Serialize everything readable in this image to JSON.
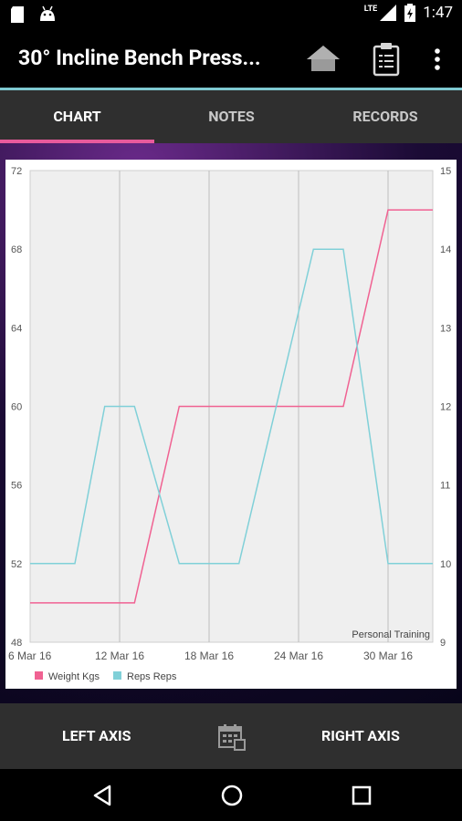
{
  "status_bar": {
    "time": "1:47",
    "network": "LTE",
    "icons": [
      "sd-card-icon",
      "android-icon",
      "signal-icon",
      "battery-icon"
    ]
  },
  "app_bar": {
    "title": "30° Incline Bench Press...",
    "icons": [
      "home-icon",
      "clipboard-icon",
      "more-vert-icon"
    ]
  },
  "tabs": [
    {
      "label": "CHART",
      "selected": true
    },
    {
      "label": "NOTES",
      "selected": false
    },
    {
      "label": "RECORDS",
      "selected": false
    }
  ],
  "colors": {
    "weight_series": "#f06292",
    "reps_series": "#80d0d8",
    "accent_tab": "#e85a9c",
    "accent_line": "#7ec9d0",
    "tab_selected": "#ffffff",
    "tab_unselected": "#c8c8c8"
  },
  "chart_data": {
    "type": "line",
    "description": "Personal Training",
    "x_ticks": [
      "6 Mar 16",
      "12 Mar 16",
      "18 Mar 16",
      "24 Mar 16",
      "30 Mar 16"
    ],
    "left_axis": {
      "ticks": [
        "72",
        "68",
        "64",
        "60",
        "56",
        "52",
        "48"
      ],
      "ylim": [
        48,
        72
      ]
    },
    "right_axis": {
      "ticks": [
        "15",
        "14",
        "13",
        "12",
        "11",
        "10",
        "9"
      ],
      "ylim": [
        9,
        15
      ]
    },
    "xlim": [
      "2016-03-06",
      "2016-04-02"
    ],
    "grid": true,
    "legend_position": "bottom-left",
    "series": [
      {
        "name": "Weight Kgs",
        "axis": "left",
        "x": [
          "2016-03-06",
          "2016-03-13",
          "2016-03-16",
          "2016-03-27",
          "2016-03-30",
          "2016-04-02"
        ],
        "y": [
          50,
          50,
          60,
          60,
          70,
          70
        ]
      },
      {
        "name": "Reps Reps",
        "axis": "right",
        "x": [
          "2016-03-06",
          "2016-03-09",
          "2016-03-11",
          "2016-03-13",
          "2016-03-16",
          "2016-03-20",
          "2016-03-25",
          "2016-03-27",
          "2016-03-30",
          "2016-04-02"
        ],
        "y": [
          10,
          10,
          12,
          12,
          10,
          10,
          14,
          14,
          10,
          10
        ]
      }
    ]
  },
  "bottom_bar": {
    "left_label": "LEFT AXIS",
    "right_label": "RIGHT AXIS",
    "icon": "calendar-icon"
  },
  "nav_bar": {
    "icons": [
      "back-icon",
      "home-circle-icon",
      "recents-icon"
    ]
  }
}
